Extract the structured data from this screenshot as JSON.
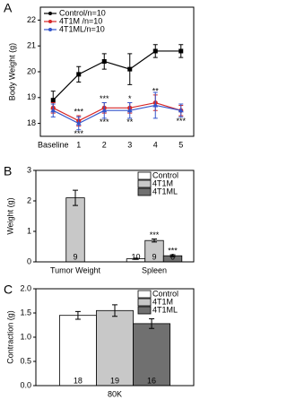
{
  "chart_data": [
    {
      "type": "line",
      "panel_label": "A",
      "ylabel": "Body Weight (g)",
      "categories": [
        "Baseline",
        "1",
        "2",
        "3",
        "4",
        "5"
      ],
      "ylim": [
        17.5,
        22.5
      ],
      "yticks": [
        18,
        19,
        20,
        21,
        22
      ],
      "series": [
        {
          "name": "Control/n=10",
          "color": "#000000",
          "marker": "square",
          "values": [
            18.9,
            19.9,
            20.4,
            20.1,
            20.8,
            20.8
          ],
          "errors": [
            0.35,
            0.3,
            0.3,
            0.6,
            0.25,
            0.25
          ]
        },
        {
          "name": "4T1M  /n=10",
          "color": "#d62728",
          "marker": "circle",
          "values": [
            18.6,
            18.1,
            18.6,
            18.6,
            18.8,
            18.5
          ],
          "errors": [
            0.2,
            0.2,
            0.2,
            0.2,
            0.3,
            0.2
          ]
        },
        {
          "name": "4T1ML/n=10",
          "color": "#3355cc",
          "marker": "triangle",
          "values": [
            18.5,
            18.0,
            18.5,
            18.5,
            18.7,
            18.5
          ],
          "errors": [
            0.25,
            0.25,
            0.3,
            0.3,
            0.5,
            0.25
          ]
        }
      ],
      "annotations": [
        {
          "text": "***",
          "x": "1",
          "series": 1
        },
        {
          "text": "***",
          "x": "1",
          "series": 2
        },
        {
          "text": "***",
          "x": "2",
          "series": 1
        },
        {
          "text": "***",
          "x": "2",
          "series": 2
        },
        {
          "text": "*",
          "x": "3",
          "series": 1
        },
        {
          "text": "**",
          "x": "3",
          "series": 2
        },
        {
          "text": "**",
          "x": "4",
          "series": 1
        },
        {
          "text": "***",
          "x": "5",
          "series": 2
        }
      ]
    },
    {
      "type": "bar",
      "panel_label": "B",
      "ylabel": "Weight (g)",
      "categories": [
        "Tumor Weight",
        "Spleen"
      ],
      "ylim": [
        0,
        3
      ],
      "yticks": [
        0,
        1,
        2,
        3
      ],
      "series": [
        {
          "name": "Control",
          "color": "#ffffff",
          "values": [
            null,
            0.1
          ],
          "errors": [
            null,
            0.02
          ],
          "n": [
            null,
            "10"
          ]
        },
        {
          "name": "4T1M",
          "color": "#c8c8c8",
          "values": [
            2.1,
            0.7
          ],
          "errors": [
            0.25,
            0.05
          ],
          "n": [
            "9",
            "9"
          ]
        },
        {
          "name": "4T1ML",
          "color": "#707070",
          "values": [
            null,
            0.2
          ],
          "errors": [
            null,
            0.03
          ],
          "n": [
            null,
            "6"
          ]
        }
      ],
      "annotations": [
        {
          "text": "***",
          "x": "Spleen",
          "series": 1
        },
        {
          "text": "***",
          "x": "Spleen",
          "series": 2
        }
      ]
    },
    {
      "type": "bar",
      "panel_label": "C",
      "ylabel": "Contraction (g)",
      "categories": [
        "80K"
      ],
      "ylim": [
        0,
        2
      ],
      "yticks": [
        {
          "value": 0,
          "label": "0.0"
        },
        {
          "value": 0.5,
          "label": "0.5"
        },
        {
          "value": 1,
          "label": "1.0"
        },
        {
          "value": 1.5,
          "label": "1.5"
        },
        {
          "value": 2,
          "label": "2.0"
        }
      ],
      "series": [
        {
          "name": "Control",
          "color": "#ffffff",
          "values": [
            1.45
          ],
          "errors": [
            0.08
          ],
          "n": [
            "18"
          ]
        },
        {
          "name": "4T1M",
          "color": "#c8c8c8",
          "values": [
            1.55
          ],
          "errors": [
            0.12
          ],
          "n": [
            "19"
          ]
        },
        {
          "name": "4T1ML",
          "color": "#707070",
          "values": [
            1.28
          ],
          "errors": [
            0.1
          ],
          "n": [
            "16"
          ]
        }
      ],
      "annotations": []
    }
  ]
}
